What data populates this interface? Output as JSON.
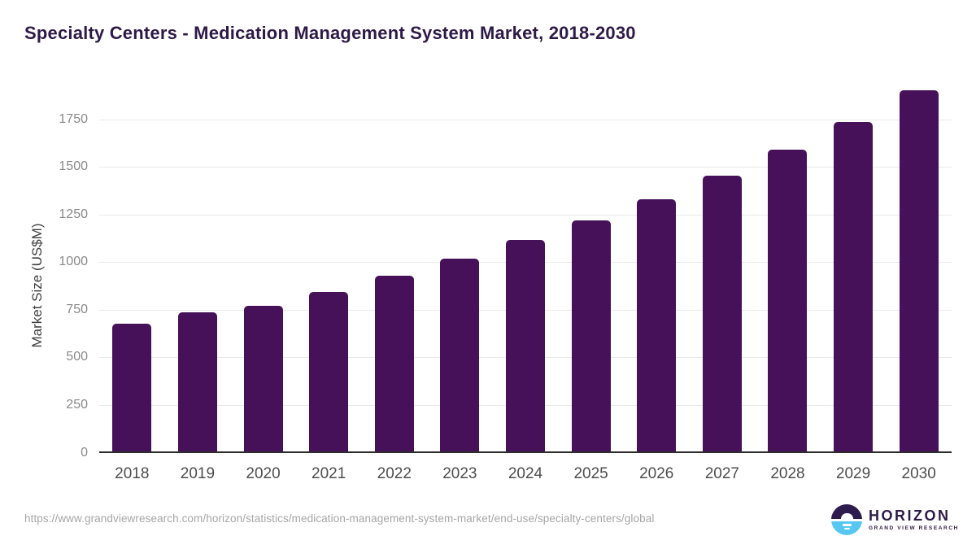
{
  "chart_data": {
    "type": "bar",
    "title": "Specialty Centers - Medication Management System Market, 2018-2030",
    "categories": [
      "2018",
      "2019",
      "2020",
      "2021",
      "2022",
      "2023",
      "2024",
      "2025",
      "2026",
      "2027",
      "2028",
      "2029",
      "2030"
    ],
    "values": [
      675,
      735,
      770,
      845,
      930,
      1020,
      1115,
      1220,
      1330,
      1455,
      1590,
      1735,
      1900
    ],
    "xlabel": "",
    "ylabel": "Market Size (US$M)",
    "ylim": [
      0,
      1950
    ],
    "yticks": [
      0,
      250,
      500,
      750,
      1000,
      1250,
      1500,
      1750
    ],
    "grid": "horizontal-light",
    "legend": "none",
    "bar_color": "#471159"
  },
  "footer": {
    "source_url": "https://www.grandviewresearch.com/horizon/statistics/medication-management-system-market/end-use/specialty-centers/global",
    "logo": {
      "brand": "HORIZON",
      "subtitle": "GRAND VIEW RESEARCH"
    }
  },
  "colors": {
    "title_text": "#2e1a47",
    "bar": "#471159",
    "axis_line": "#2d2d2d",
    "gridline": "#e9e9e9",
    "y_tick_text": "#8a8a8a",
    "x_tick_text": "#4e4e4e",
    "source_text": "#a6a6a6",
    "logo_purple": "#2e1c4e",
    "logo_blue": "#57c7f1"
  }
}
